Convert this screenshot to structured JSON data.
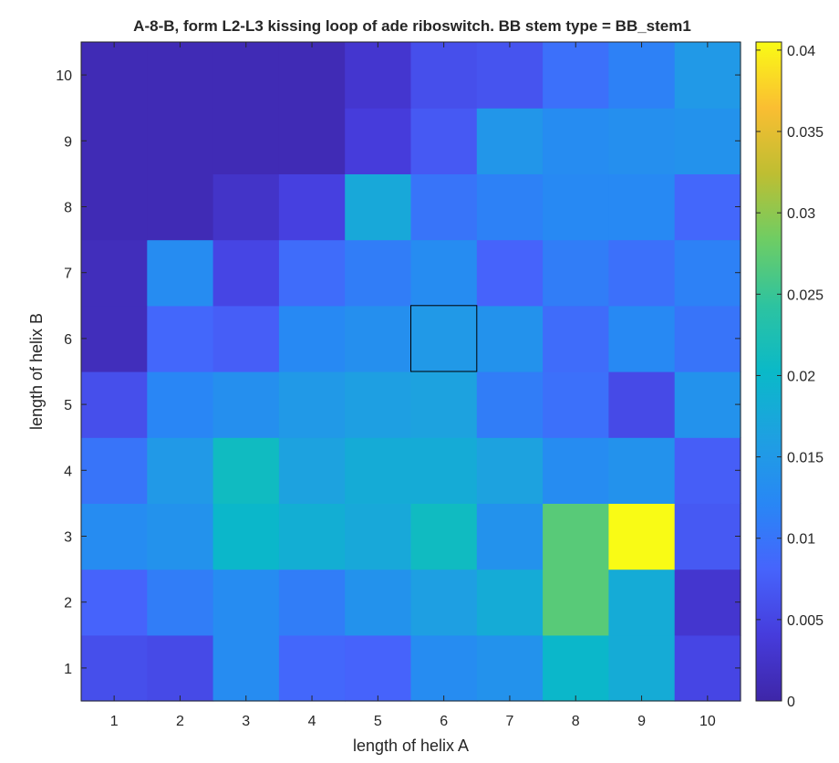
{
  "chart_data": {
    "type": "heatmap",
    "title": "A-8-B, form L2-L3 kissing loop of ade riboswitch. BB stem type = BB_stem1",
    "xlabel": "length of helix A",
    "ylabel": "length of helix B",
    "x_categories": [
      "1",
      "2",
      "3",
      "4",
      "5",
      "6",
      "7",
      "8",
      "9",
      "10"
    ],
    "y_categories": [
      "1",
      "2",
      "3",
      "4",
      "5",
      "6",
      "7",
      "8",
      "9",
      "10"
    ],
    "colormap": "parula",
    "color_range": [
      0,
      0.0405
    ],
    "colorbar_ticks": [
      "0",
      "0.005",
      "0.01",
      "0.015",
      "0.02",
      "0.025",
      "0.03",
      "0.035",
      "0.04"
    ],
    "colorbar_tick_values": [
      0,
      0.005,
      0.01,
      0.015,
      0.02,
      0.025,
      0.03,
      0.035,
      0.04
    ],
    "highlighted_cell": {
      "x": 6,
      "y": 6
    },
    "values": [
      [
        0.006,
        0.0055,
        0.013,
        0.0085,
        0.008,
        0.013,
        0.014,
        0.02,
        0.018,
        0.005
      ],
      [
        0.008,
        0.011,
        0.013,
        0.011,
        0.014,
        0.016,
        0.018,
        0.027,
        0.018,
        0.003
      ],
      [
        0.013,
        0.014,
        0.02,
        0.0185,
        0.0175,
        0.021,
        0.014,
        0.027,
        0.0405,
        0.007
      ],
      [
        0.01,
        0.015,
        0.021,
        0.0165,
        0.018,
        0.018,
        0.0165,
        0.013,
        0.014,
        0.0075
      ],
      [
        0.006,
        0.012,
        0.0135,
        0.015,
        0.016,
        0.0165,
        0.011,
        0.0095,
        0.0055,
        0.014
      ],
      [
        0.0015,
        0.0085,
        0.0075,
        0.0125,
        0.0135,
        0.015,
        0.014,
        0.009,
        0.0125,
        0.01
      ],
      [
        0.0015,
        0.013,
        0.005,
        0.009,
        0.011,
        0.013,
        0.008,
        0.011,
        0.0095,
        0.0115
      ],
      [
        0.001,
        0.001,
        0.0025,
        0.0045,
        0.0175,
        0.01,
        0.0115,
        0.0125,
        0.0125,
        0.0085
      ],
      [
        0.001,
        0.001,
        0.001,
        0.001,
        0.004,
        0.007,
        0.0145,
        0.013,
        0.0135,
        0.014
      ],
      [
        0.001,
        0.001,
        0.001,
        0.001,
        0.003,
        0.006,
        0.0065,
        0.0095,
        0.0115,
        0.015
      ]
    ]
  }
}
